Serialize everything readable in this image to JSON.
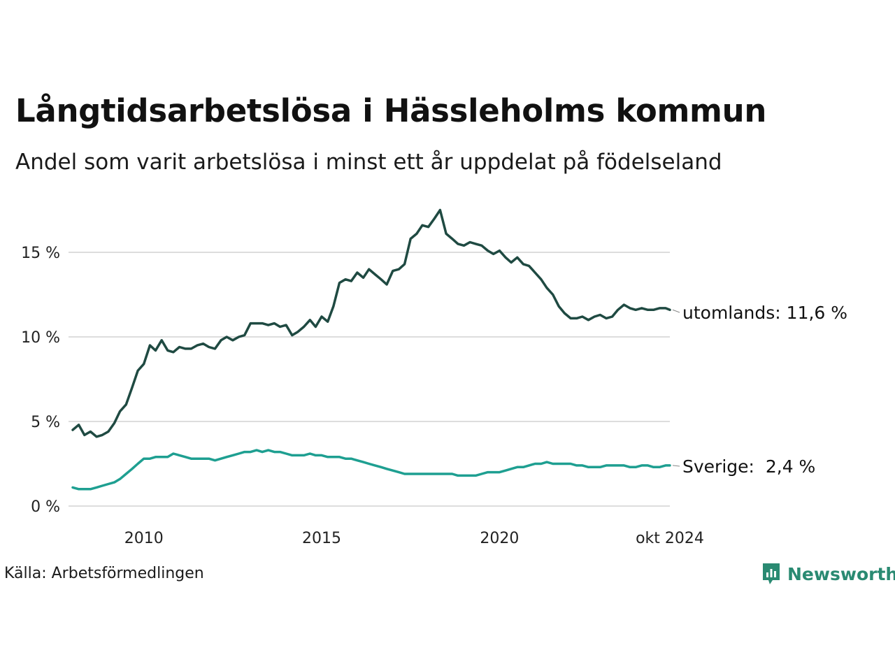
{
  "title": "Långtidsarbetslösa i Hässleholms kommun",
  "subtitle": "Andel som varit arbetslösa i minst ett år uppdelat på födelseland",
  "source": "Källa: Arbetsförmedlingen",
  "brand": {
    "name": "Newsworthy",
    "icon": "newsworthy-logo-icon",
    "color": "#2a8a72"
  },
  "chart_data": {
    "type": "line",
    "ylim": [
      0,
      18
    ],
    "yticks": [
      0,
      5,
      10,
      15
    ],
    "ytick_labels": [
      "0 %",
      "5 %",
      "10 %",
      "15 %"
    ],
    "xticks": [
      2010,
      2015,
      2020,
      2024.79
    ],
    "xtick_labels": [
      "2010",
      "2015",
      "2020",
      "okt 2024"
    ],
    "grid": true,
    "series": [
      {
        "name": "utomlands",
        "label": "utomlands: 11,6 %",
        "color": "#1f4a42",
        "x": [
          2008.0,
          2008.17,
          2008.33,
          2008.5,
          2008.67,
          2008.83,
          2009.0,
          2009.17,
          2009.33,
          2009.5,
          2009.67,
          2009.83,
          2010.0,
          2010.17,
          2010.33,
          2010.5,
          2010.67,
          2010.83,
          2011.0,
          2011.17,
          2011.33,
          2011.5,
          2011.67,
          2011.83,
          2012.0,
          2012.17,
          2012.33,
          2012.5,
          2012.67,
          2012.83,
          2013.0,
          2013.17,
          2013.33,
          2013.5,
          2013.67,
          2013.83,
          2014.0,
          2014.17,
          2014.33,
          2014.5,
          2014.67,
          2014.83,
          2015.0,
          2015.17,
          2015.33,
          2015.5,
          2015.67,
          2015.83,
          2016.0,
          2016.17,
          2016.33,
          2016.5,
          2016.67,
          2016.83,
          2017.0,
          2017.17,
          2017.33,
          2017.5,
          2017.67,
          2017.83,
          2018.0,
          2018.17,
          2018.33,
          2018.5,
          2018.67,
          2018.83,
          2019.0,
          2019.17,
          2019.33,
          2019.5,
          2019.67,
          2019.83,
          2020.0,
          2020.17,
          2020.33,
          2020.5,
          2020.67,
          2020.83,
          2021.0,
          2021.17,
          2021.33,
          2021.5,
          2021.67,
          2021.83,
          2022.0,
          2022.17,
          2022.33,
          2022.5,
          2022.67,
          2022.83,
          2023.0,
          2023.17,
          2023.33,
          2023.5,
          2023.67,
          2023.83,
          2024.0,
          2024.17,
          2024.33,
          2024.5,
          2024.67,
          2024.79
        ],
        "y": [
          4.5,
          4.8,
          4.2,
          4.4,
          4.1,
          4.2,
          4.4,
          4.9,
          5.6,
          6.0,
          7.0,
          8.0,
          8.4,
          9.5,
          9.2,
          9.8,
          9.2,
          9.1,
          9.4,
          9.3,
          9.3,
          9.5,
          9.6,
          9.4,
          9.3,
          9.8,
          10.0,
          9.8,
          10.0,
          10.1,
          10.8,
          10.8,
          10.8,
          10.7,
          10.8,
          10.6,
          10.7,
          10.1,
          10.3,
          10.6,
          11.0,
          10.6,
          11.2,
          10.9,
          11.8,
          13.2,
          13.4,
          13.3,
          13.8,
          13.5,
          14.0,
          13.7,
          13.4,
          13.1,
          13.9,
          14.0,
          14.3,
          15.8,
          16.1,
          16.6,
          16.5,
          17.0,
          17.5,
          16.1,
          15.8,
          15.5,
          15.4,
          15.6,
          15.5,
          15.4,
          15.1,
          14.9,
          15.1,
          14.7,
          14.4,
          14.7,
          14.3,
          14.2,
          13.8,
          13.4,
          12.9,
          12.5,
          11.8,
          11.4,
          11.1,
          11.1,
          11.2,
          11.0,
          11.2,
          11.3,
          11.1,
          11.2,
          11.6,
          11.9,
          11.7,
          11.6,
          11.7,
          11.6,
          11.6,
          11.7,
          11.7,
          11.6
        ]
      },
      {
        "name": "Sverige",
        "label": "Sverige:  2,4 %",
        "color": "#1e9f91",
        "x": [
          2008.0,
          2008.17,
          2008.33,
          2008.5,
          2008.67,
          2008.83,
          2009.0,
          2009.17,
          2009.33,
          2009.5,
          2009.67,
          2009.83,
          2010.0,
          2010.17,
          2010.33,
          2010.5,
          2010.67,
          2010.83,
          2011.0,
          2011.17,
          2011.33,
          2011.5,
          2011.67,
          2011.83,
          2012.0,
          2012.17,
          2012.33,
          2012.5,
          2012.67,
          2012.83,
          2013.0,
          2013.17,
          2013.33,
          2013.5,
          2013.67,
          2013.83,
          2014.0,
          2014.17,
          2014.33,
          2014.5,
          2014.67,
          2014.83,
          2015.0,
          2015.17,
          2015.33,
          2015.5,
          2015.67,
          2015.83,
          2016.0,
          2016.17,
          2016.33,
          2016.5,
          2016.67,
          2016.83,
          2017.0,
          2017.17,
          2017.33,
          2017.5,
          2017.67,
          2017.83,
          2018.0,
          2018.17,
          2018.33,
          2018.5,
          2018.67,
          2018.83,
          2019.0,
          2019.17,
          2019.33,
          2019.5,
          2019.67,
          2019.83,
          2020.0,
          2020.17,
          2020.33,
          2020.5,
          2020.67,
          2020.83,
          2021.0,
          2021.17,
          2021.33,
          2021.5,
          2021.67,
          2021.83,
          2022.0,
          2022.17,
          2022.33,
          2022.5,
          2022.67,
          2022.83,
          2023.0,
          2023.17,
          2023.33,
          2023.5,
          2023.67,
          2023.83,
          2024.0,
          2024.17,
          2024.33,
          2024.5,
          2024.67,
          2024.79
        ],
        "y": [
          1.1,
          1.0,
          1.0,
          1.0,
          1.1,
          1.2,
          1.3,
          1.4,
          1.6,
          1.9,
          2.2,
          2.5,
          2.8,
          2.8,
          2.9,
          2.9,
          2.9,
          3.1,
          3.0,
          2.9,
          2.8,
          2.8,
          2.8,
          2.8,
          2.7,
          2.8,
          2.9,
          3.0,
          3.1,
          3.2,
          3.2,
          3.3,
          3.2,
          3.3,
          3.2,
          3.2,
          3.1,
          3.0,
          3.0,
          3.0,
          3.1,
          3.0,
          3.0,
          2.9,
          2.9,
          2.9,
          2.8,
          2.8,
          2.7,
          2.6,
          2.5,
          2.4,
          2.3,
          2.2,
          2.1,
          2.0,
          1.9,
          1.9,
          1.9,
          1.9,
          1.9,
          1.9,
          1.9,
          1.9,
          1.9,
          1.8,
          1.8,
          1.8,
          1.8,
          1.9,
          2.0,
          2.0,
          2.0,
          2.1,
          2.2,
          2.3,
          2.3,
          2.4,
          2.5,
          2.5,
          2.6,
          2.5,
          2.5,
          2.5,
          2.5,
          2.4,
          2.4,
          2.3,
          2.3,
          2.3,
          2.4,
          2.4,
          2.4,
          2.4,
          2.3,
          2.3,
          2.4,
          2.4,
          2.3,
          2.3,
          2.4,
          2.4
        ]
      }
    ]
  }
}
